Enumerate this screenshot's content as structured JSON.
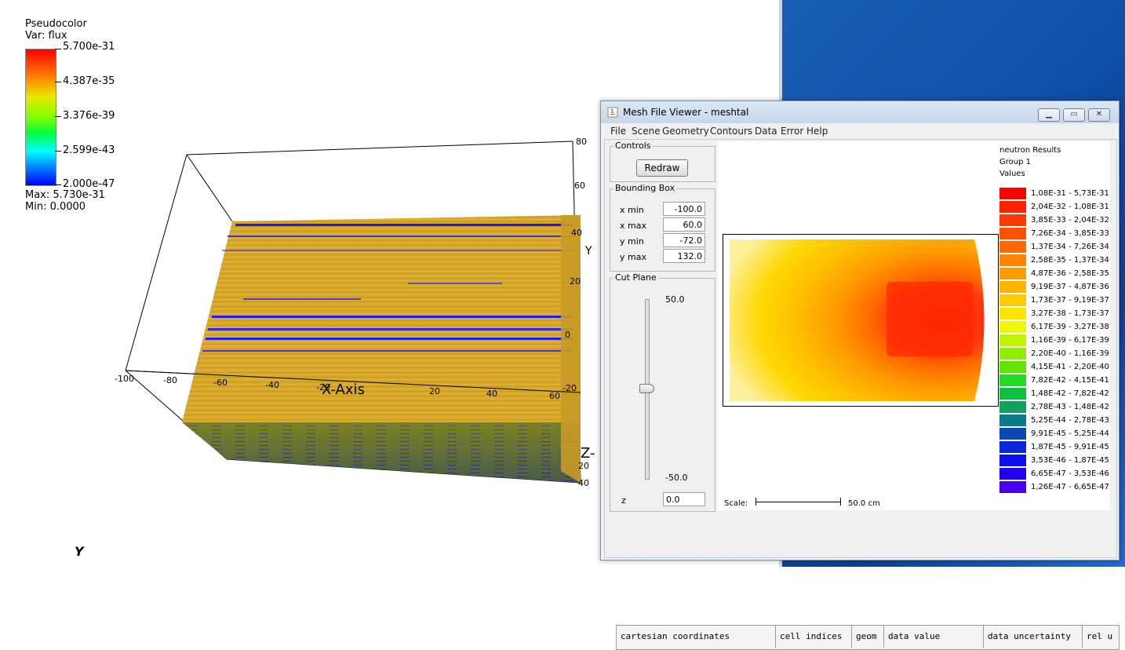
{
  "legend": {
    "title": "Pseudocolor",
    "var": "Var: flux",
    "ticks": [
      "5.700e-31",
      "4.387e-35",
      "3.376e-39",
      "2.599e-43",
      "2.000e-47"
    ],
    "max": "Max:  5.730e-31",
    "min": "Min:  0.0000"
  },
  "axes": {
    "x_label": "X-Axis",
    "x_ticks": [
      "-100",
      "-80",
      "-60",
      "-40",
      "-20",
      "20",
      "40",
      "60"
    ],
    "y_ticks": [
      "80",
      "60",
      "40",
      "20",
      "0",
      "-20",
      "-40"
    ],
    "y_label_right": "Y",
    "z_label": "Z-",
    "z_ticks": [
      "40",
      "20",
      "20",
      "40"
    ],
    "bottom_y": "Y"
  },
  "window": {
    "title": "Mesh File Viewer - meshtal",
    "menus": [
      "File",
      "Scene",
      "Geometry",
      "Contours",
      "Data",
      "Error",
      "Help"
    ],
    "controls_label": "Controls",
    "redraw": "Redraw",
    "bbox_label": "Bounding Box",
    "bbox": [
      {
        "label": "x min",
        "value": "-100.0"
      },
      {
        "label": "x max",
        "value": "60.0"
      },
      {
        "label": "y min",
        "value": "-72.0"
      },
      {
        "label": "y max",
        "value": "132.0"
      }
    ],
    "cut_label": "Cut Plane",
    "slider_max": "50.0",
    "slider_min": "-50.0",
    "slider_value": 0.0,
    "z_label": "z",
    "z_value": "0.0",
    "results_title": "neutron Results",
    "results_group": "Group 1",
    "results_values": "Values",
    "scale_label": "Scale:",
    "scale_value": "50.0 cm",
    "legend_entries": [
      {
        "color": "#ff0000",
        "text": "1,08E-31 - 5,73E-31"
      },
      {
        "color": "#ff2200",
        "text": "2,04E-32 - 1,08E-31"
      },
      {
        "color": "#ff3a00",
        "text": "3,85E-33 - 2,04E-32"
      },
      {
        "color": "#ff5200",
        "text": "7,26E-34 - 3,85E-33"
      },
      {
        "color": "#ff6a00",
        "text": "1,37E-34 - 7,26E-34"
      },
      {
        "color": "#ff8400",
        "text": "2,58E-35 - 1,37E-34"
      },
      {
        "color": "#ff9c00",
        "text": "4,87E-36 - 2,58E-35"
      },
      {
        "color": "#ffb400",
        "text": "9,19E-37 - 4,87E-36"
      },
      {
        "color": "#ffcc00",
        "text": "1,73E-37 - 9,19E-37"
      },
      {
        "color": "#ffe400",
        "text": "3,27E-38 - 1,73E-37"
      },
      {
        "color": "#eef800",
        "text": "6,17E-39 - 3,27E-38"
      },
      {
        "color": "#c0f400",
        "text": "1,16E-39 - 6,17E-39"
      },
      {
        "color": "#90ee00",
        "text": "2,20E-40 - 1,16E-39"
      },
      {
        "color": "#5ee600",
        "text": "4,15E-41 - 2,20E-40"
      },
      {
        "color": "#22dc22",
        "text": "7,82E-42 - 4,15E-41"
      },
      {
        "color": "#10c040",
        "text": "1,48E-42 - 7,82E-42"
      },
      {
        "color": "#10a060",
        "text": "2,78E-43 - 1,48E-42"
      },
      {
        "color": "#0a7a88",
        "text": "5,25E-44 - 2,78E-43"
      },
      {
        "color": "#0a48b8",
        "text": "9,91E-45 - 5,25E-44"
      },
      {
        "color": "#0828dc",
        "text": "1,87E-45 - 9,91E-45"
      },
      {
        "color": "#0c10f0",
        "text": "3,53E-46 - 1,87E-45"
      },
      {
        "color": "#2000f4",
        "text": "6,65E-47 - 3,53E-46"
      },
      {
        "color": "#4800f0",
        "text": "1,26E-47 - 6,65E-47"
      }
    ],
    "status_cells": [
      "cartesian coordinates",
      "cell indices",
      "geom",
      "data value",
      "data uncertainty",
      "rel u"
    ]
  }
}
